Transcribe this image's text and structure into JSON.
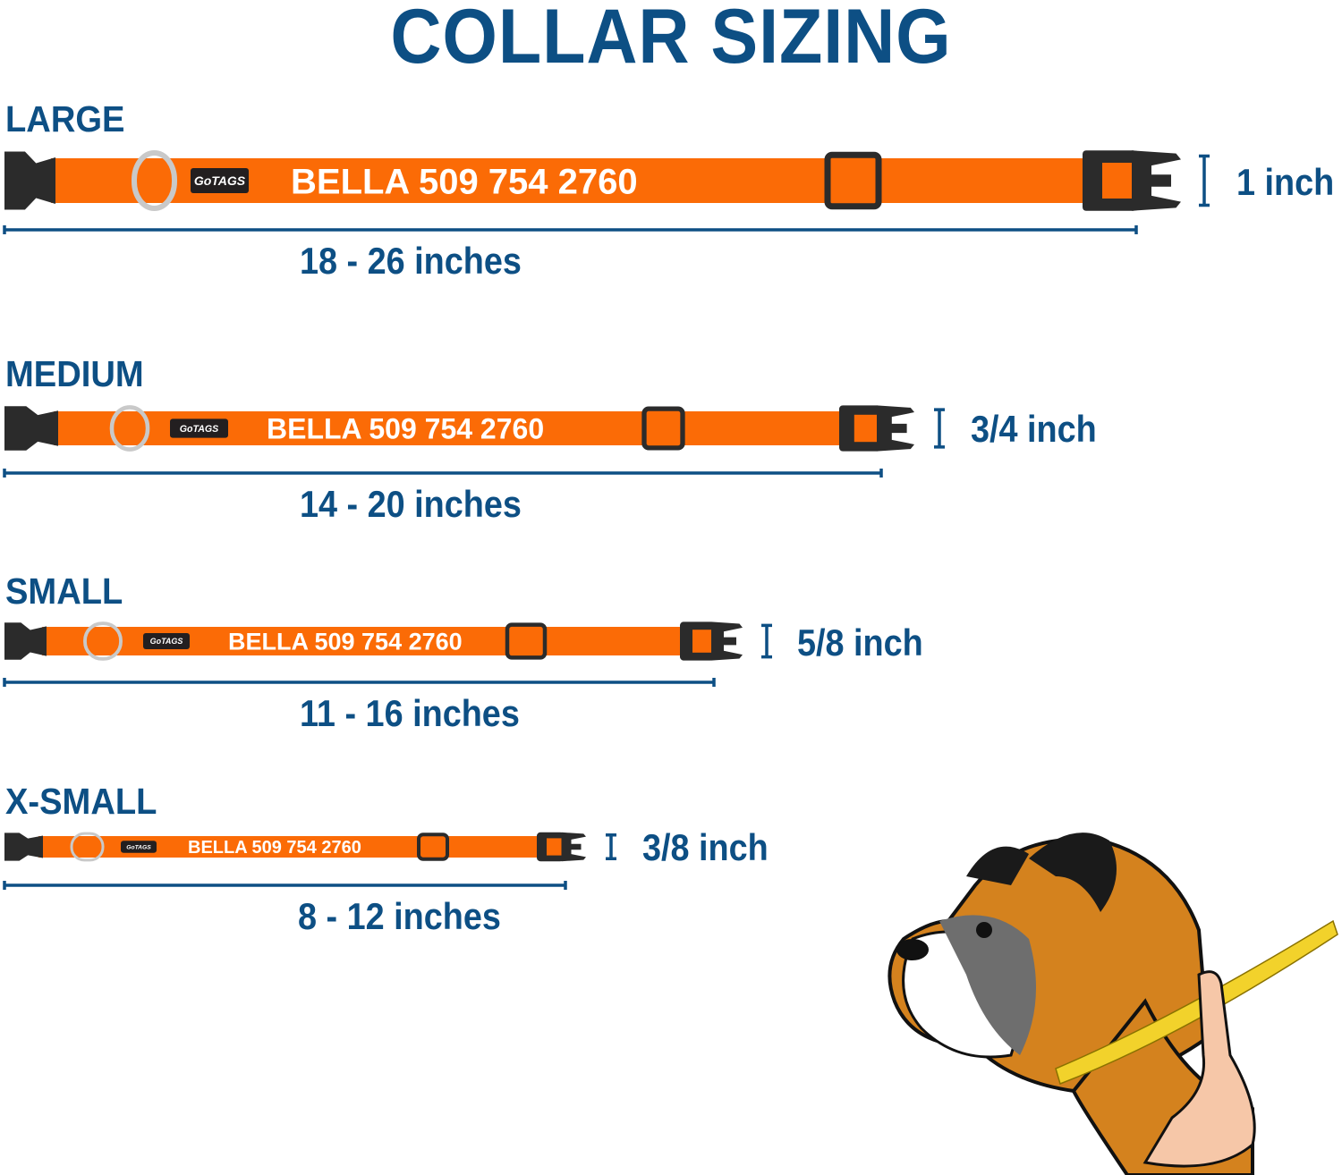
{
  "title": "COLLAR SIZING",
  "brand_logo": "GoTAGS",
  "colors": {
    "heading": "#0d4f84",
    "strap": "#fb6b06",
    "buckle": "#2b2b2b",
    "ring": "#c9c9c9",
    "tape": "#f2d22b"
  },
  "sizes": [
    {
      "name": "LARGE",
      "collar_text": "BELLA 509 754 2760",
      "width": "1 inch",
      "range": "18 - 26 inches"
    },
    {
      "name": "MEDIUM",
      "collar_text": "BELLA 509 754 2760",
      "width": "3/4 inch",
      "range": "14 - 20 inches"
    },
    {
      "name": "SMALL",
      "collar_text": "BELLA 509 754 2760",
      "width": "5/8 inch",
      "range": "11 - 16 inches"
    },
    {
      "name": "X-SMALL",
      "collar_text": "BELLA 509 754 2760",
      "width": "3/8 inch",
      "range": "8 - 12 inches"
    }
  ],
  "illustration": "boxer-dog-neck-measurement"
}
